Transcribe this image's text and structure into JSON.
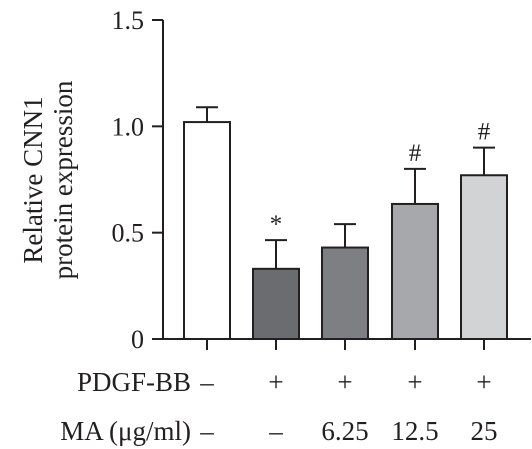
{
  "chart_data": {
    "type": "bar",
    "title": "",
    "xlabel": "",
    "ylabel_lines": [
      "Relative CNN1",
      "protein expression"
    ],
    "ylim": [
      0,
      1.5
    ],
    "yticks": [
      {
        "value": 0,
        "label": "0"
      },
      {
        "value": 0.5,
        "label": "0.5"
      },
      {
        "value": 1.0,
        "label": "1.0"
      },
      {
        "value": 1.5,
        "label": "1.5"
      }
    ],
    "grid": false,
    "legend": "none",
    "bars": [
      {
        "value": 1.02,
        "error": 0.07,
        "fill": "#ffffff",
        "annotation": ""
      },
      {
        "value": 0.33,
        "error": 0.135,
        "fill": "#6b6c70",
        "annotation": "*"
      },
      {
        "value": 0.43,
        "error": 0.11,
        "fill": "#7e7f83",
        "annotation": ""
      },
      {
        "value": 0.635,
        "error": 0.165,
        "fill": "#a7a8ac",
        "annotation": "#"
      },
      {
        "value": 0.77,
        "error": 0.13,
        "fill": "#d2d3d5",
        "annotation": "#"
      }
    ],
    "conditions": [
      {
        "label": "PDGF-BB",
        "values": [
          "–",
          "+",
          "+",
          "+",
          "+"
        ]
      },
      {
        "label": "MA (μg/ml)",
        "values": [
          "–",
          "–",
          "6.25",
          "12.5",
          "25"
        ]
      }
    ]
  }
}
